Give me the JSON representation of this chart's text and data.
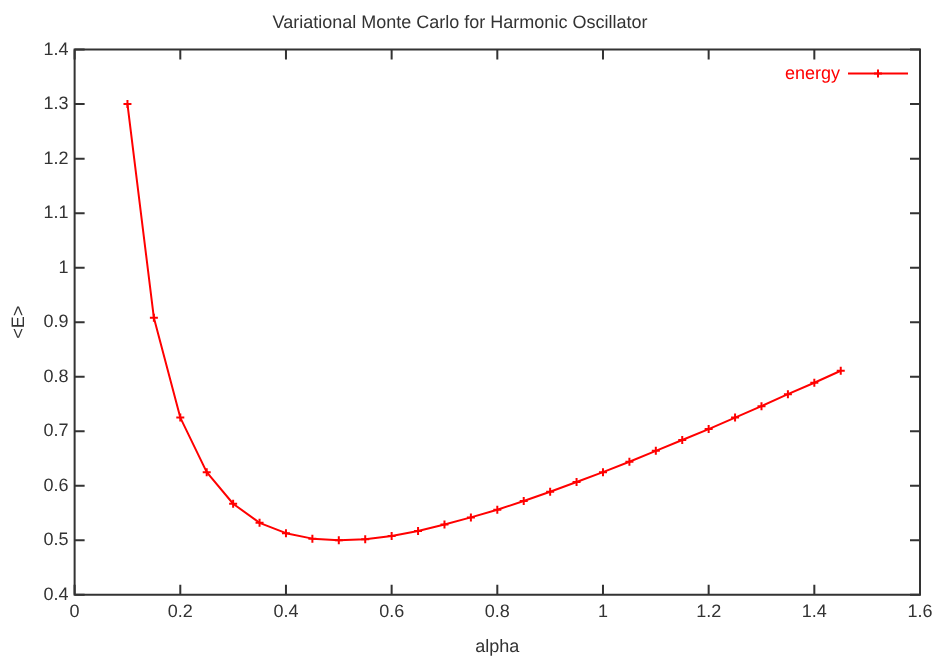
{
  "chart_data": {
    "type": "line",
    "title": "Variational Monte Carlo for Harmonic Oscillator",
    "xlabel": "alpha",
    "ylabel": "<E>",
    "x": [
      0.1,
      0.15,
      0.2,
      0.25,
      0.3,
      0.35,
      0.4,
      0.45,
      0.5,
      0.55,
      0.6,
      0.65,
      0.7,
      0.75,
      0.8,
      0.85,
      0.9,
      0.95,
      1.0,
      1.05,
      1.1,
      1.15,
      1.2,
      1.25,
      1.3,
      1.35,
      1.4,
      1.45
    ],
    "series": [
      {
        "name": "energy",
        "color": "#ff0000",
        "values": [
          1.3,
          0.908,
          0.725,
          0.625,
          0.567,
          0.532,
          0.513,
          0.503,
          0.5,
          0.502,
          0.508,
          0.517,
          0.529,
          0.542,
          0.556,
          0.572,
          0.589,
          0.607,
          0.625,
          0.644,
          0.664,
          0.684,
          0.704,
          0.725,
          0.746,
          0.768,
          0.789,
          0.811
        ]
      }
    ],
    "xlim": [
      0,
      1.6
    ],
    "xticks": [
      0,
      0.2,
      0.4,
      0.6,
      0.8,
      1,
      1.2,
      1.4,
      1.6
    ],
    "ylim": [
      0.4,
      1.4
    ],
    "yticks": [
      0.4,
      0.5,
      0.6,
      0.7,
      0.8,
      0.9,
      1,
      1.1,
      1.2,
      1.3,
      1.4
    ],
    "grid": false,
    "legend": "top right",
    "marker": "cross",
    "line_style": "solid"
  }
}
